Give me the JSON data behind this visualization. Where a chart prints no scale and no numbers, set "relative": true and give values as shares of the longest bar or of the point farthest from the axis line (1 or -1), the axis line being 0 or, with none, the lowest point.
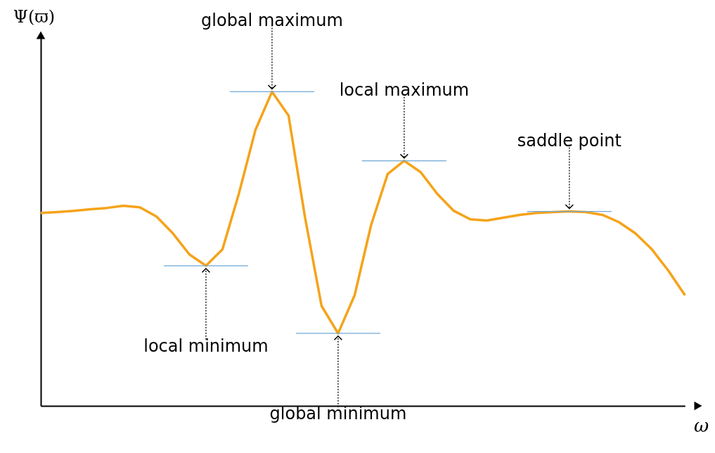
{
  "chart_data": {
    "type": "line",
    "relative": true,
    "xlabel": "ω",
    "ylabel": "Ψ(ϖ)",
    "grid": false,
    "legend": false,
    "categories": [
      null,
      null,
      null,
      null,
      null,
      null,
      null,
      null,
      null,
      null,
      null,
      null,
      null,
      null,
      null,
      null,
      null,
      null,
      null,
      null,
      null,
      null,
      null,
      null,
      null,
      null,
      null,
      null,
      null,
      null,
      null,
      null,
      null,
      null,
      null,
      null,
      null,
      null,
      null,
      null
    ],
    "series": [
      {
        "color": "#f5a31a",
        "values": [
          0.614,
          0.617,
          0.621,
          0.626,
          0.63,
          0.637,
          0.632,
          0.603,
          0.549,
          0.482,
          0.446,
          0.498,
          0.677,
          0.879,
          1,
          0.924,
          0.599,
          0.318,
          0.231,
          0.352,
          0.576,
          0.738,
          0.78,
          0.744,
          0.675,
          0.621,
          0.594,
          0.59,
          0.599,
          0.608,
          0.614,
          0.617,
          0.619,
          0.617,
          0.608,
          0.585,
          0.549,
          0.498,
          0.43,
          0.352
        ]
      }
    ],
    "annotations": [
      {
        "text": "global maximum",
        "y": 1
      },
      {
        "text": "local maximum",
        "y": 0.78
      },
      {
        "text": "saddle point",
        "y": 0.619
      },
      {
        "text": "local minimum",
        "y": 0.446
      },
      {
        "text": "global minimum",
        "y": 0.231
      }
    ]
  }
}
